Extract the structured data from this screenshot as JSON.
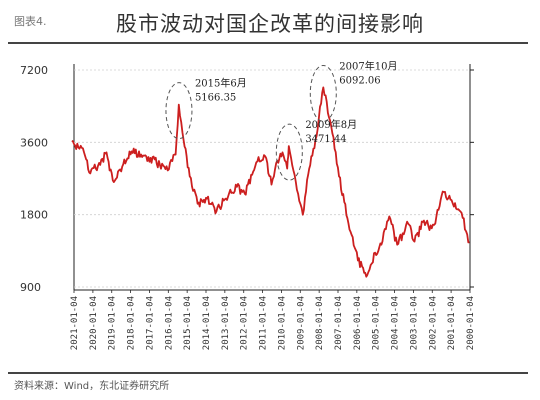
{
  "page_title": "股市波动对国企改革的间接影响",
  "chart_data": {
    "type": "line",
    "caption": "图表4.",
    "source": "资料来源：Wind，东北证券研究所",
    "y_scale": "log",
    "ylim": [
      900,
      7200
    ],
    "y_ticks": [
      7200,
      3600,
      1800,
      900
    ],
    "x_ticks": [
      "2000-01-04",
      "2001-01-04",
      "2002-01-04",
      "2003-01-04",
      "2004-01-04",
      "2005-01-04",
      "2006-01-04",
      "2007-01-04",
      "2008-01-04",
      "2009-01-04",
      "2010-01-04",
      "2011-01-04",
      "2012-01-04",
      "2013-01-04",
      "2014-01-04",
      "2015-01-04",
      "2016-01-04",
      "2017-01-04",
      "2018-01-04",
      "2019-01-04",
      "2020-01-04",
      "2021-01-04"
    ],
    "line_color": "#cc1f1f",
    "annotations": [
      {
        "line1": "2007年10月",
        "line2": "6092.06",
        "date": "2007-10-16",
        "value": 6092
      },
      {
        "line1": "2009年8月",
        "line2": "3471.44",
        "date": "2009-08-04",
        "value": 3471
      },
      {
        "line1": "2015年6月",
        "line2": "5166.35",
        "date": "2015-06-12",
        "value": 5166
      }
    ],
    "series": [
      {
        "x": [
          "2000-01",
          "2000-06",
          "2001-01",
          "2001-06",
          "2001-10",
          "2002-01",
          "2002-06",
          "2002-12",
          "2003-04",
          "2003-11",
          "2004-04",
          "2004-09",
          "2005-01",
          "2005-06",
          "2005-12",
          "2006-06",
          "2006-12",
          "2007-05",
          "2007-10",
          "2008-03",
          "2008-07",
          "2008-11",
          "2009-02",
          "2009-08",
          "2009-09",
          "2009-12",
          "2010-04",
          "2010-07",
          "2010-11",
          "2011-04",
          "2011-10",
          "2011-12",
          "2012-05",
          "2012-12",
          "2013-06",
          "2013-12",
          "2014-06",
          "2014-11",
          "2015-03",
          "2015-06",
          "2015-08",
          "2016-01",
          "2016-06",
          "2016-12",
          "2017-06",
          "2017-12",
          "2018-06",
          "2018-12",
          "2019-04",
          "2019-08",
          "2020-03",
          "2020-07",
          "2020-12",
          "2021-02"
        ],
        "values": [
          1380,
          1830,
          2080,
          2245,
          1770,
          1580,
          1700,
          1390,
          1650,
          1350,
          1770,
          1350,
          1250,
          1010,
          1160,
          1650,
          2600,
          4200,
          6092,
          3700,
          2800,
          1800,
          2200,
          3471,
          2800,
          3270,
          2950,
          2400,
          3150,
          3000,
          2400,
          2200,
          2350,
          2100,
          1860,
          2100,
          2000,
          2600,
          3700,
          5166,
          3200,
          2750,
          2900,
          3100,
          3200,
          3300,
          2850,
          2500,
          3270,
          2900,
          2700,
          3400,
          3500,
          3650
        ]
      }
    ]
  }
}
